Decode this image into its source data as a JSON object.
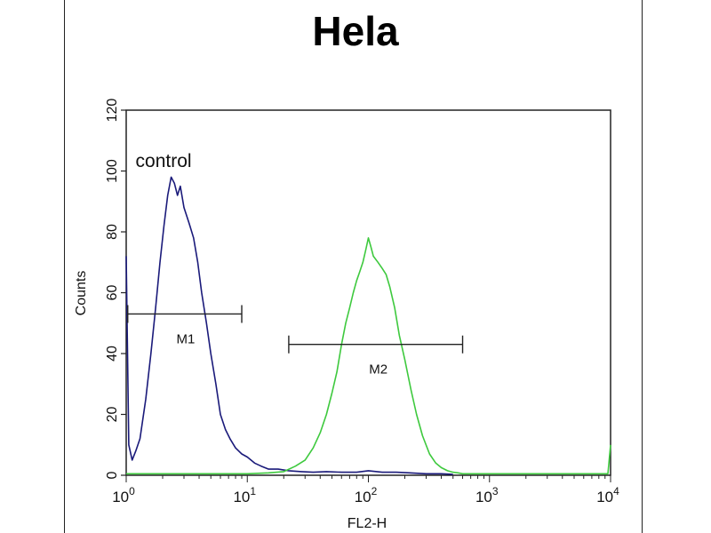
{
  "chart_data": {
    "type": "line",
    "title": "Hela",
    "xlabel": "FL2-H",
    "ylabel": "Counts",
    "x_scale": "log",
    "xlim": [
      1,
      10000
    ],
    "ylim": [
      0,
      120
    ],
    "yticks": [
      0,
      20,
      40,
      60,
      80,
      100,
      120
    ],
    "xtick_labels": [
      {
        "base": "10",
        "exp": "0"
      },
      {
        "base": "10",
        "exp": "1"
      },
      {
        "base": "10",
        "exp": "2"
      },
      {
        "base": "10",
        "exp": "3"
      },
      {
        "base": "10",
        "exp": "4"
      }
    ],
    "annotations": [
      {
        "text": "control",
        "x": 1.3,
        "y": 103
      }
    ],
    "gates": [
      {
        "label": "M1",
        "x_start": 1.03,
        "x_end": 9.0,
        "y": 53
      },
      {
        "label": "M2",
        "x_start": 22,
        "x_end": 600,
        "y": 43
      }
    ],
    "series": [
      {
        "color": "#1a1a7a",
        "x": [
          1.0,
          1.05,
          1.12,
          1.2,
          1.3,
          1.45,
          1.6,
          1.75,
          1.9,
          2.05,
          2.2,
          2.35,
          2.5,
          2.65,
          2.8,
          3.0,
          3.3,
          3.6,
          3.9,
          4.2,
          4.6,
          5.0,
          5.5,
          6.0,
          6.6,
          7.2,
          8.0,
          9.0,
          10,
          11.5,
          13,
          15,
          18,
          22,
          28,
          35,
          45,
          60,
          80,
          100,
          130,
          170,
          220,
          300,
          400,
          500
        ],
        "y": [
          72,
          10,
          5,
          8,
          12,
          25,
          40,
          55,
          70,
          82,
          92,
          98,
          96,
          92,
          95,
          88,
          83,
          78,
          70,
          60,
          50,
          40,
          30,
          20,
          15,
          12,
          9,
          7,
          6,
          4,
          3,
          2,
          2,
          1.5,
          1.2,
          1,
          1.2,
          1,
          1,
          1.5,
          1,
          1,
          0.8,
          0.5,
          0.5,
          0.3
        ]
      },
      {
        "color": "#3ec93e",
        "x": [
          1,
          2,
          5,
          10,
          15,
          20,
          25,
          30,
          35,
          40,
          45,
          50,
          55,
          60,
          65,
          70,
          75,
          80,
          85,
          90,
          95,
          100,
          105,
          110,
          120,
          130,
          140,
          150,
          165,
          180,
          200,
          225,
          250,
          280,
          320,
          360,
          400,
          450,
          500,
          550,
          600,
          700,
          1000,
          2000,
          5000,
          9500,
          10000
        ],
        "y": [
          0.5,
          0.5,
          0.5,
          0.5,
          0.8,
          1.2,
          3,
          5,
          9,
          14,
          20,
          27,
          34,
          43,
          50,
          55,
          60,
          64,
          67,
          70,
          74,
          78,
          75,
          72,
          70,
          68,
          66,
          62,
          55,
          46,
          38,
          28,
          20,
          13,
          7,
          4,
          2.5,
          1.5,
          1,
          0.8,
          0.5,
          0.5,
          0.5,
          0.5,
          0.5,
          0.5,
          10
        ]
      }
    ]
  }
}
